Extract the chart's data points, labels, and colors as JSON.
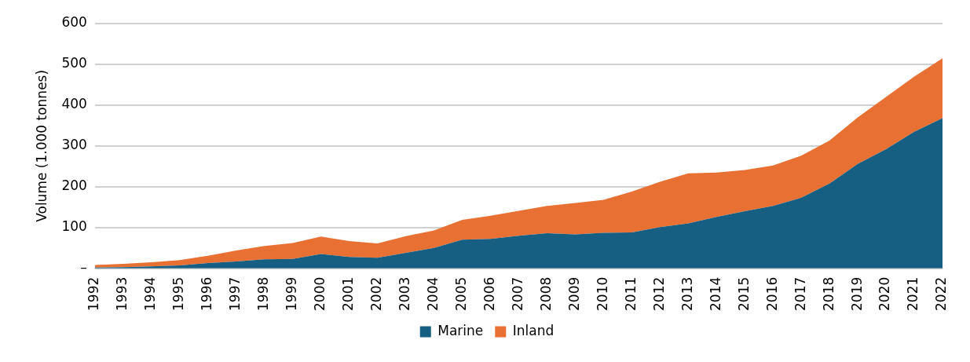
{
  "chart_data": {
    "type": "area",
    "stacked": true,
    "ylabel": "Volume (1.000 tonnes)",
    "categories": [
      "1992",
      "1993",
      "1994",
      "1995",
      "1996",
      "1997",
      "1998",
      "1999",
      "2000",
      "2001",
      "2002",
      "2003",
      "2004",
      "2005",
      "2006",
      "2007",
      "2008",
      "2009",
      "2010",
      "2011",
      "2012",
      "2013",
      "2014",
      "2015",
      "2016",
      "2017",
      "2018",
      "2019",
      "2020",
      "2021",
      "2022"
    ],
    "series": [
      {
        "name": "Marine",
        "color": "#175f82",
        "values": [
          2,
          3,
          5,
          7,
          13,
          17,
          22,
          23,
          35,
          28,
          26,
          38,
          50,
          70,
          72,
          80,
          86,
          83,
          87,
          88,
          101,
          110,
          126,
          140,
          153,
          173,
          208,
          256,
          292,
          335,
          368
        ]
      },
      {
        "name": "Inland",
        "color": "#e87033",
        "values": [
          6,
          8,
          10,
          13,
          18,
          27,
          33,
          39,
          43,
          39,
          35,
          41,
          43,
          49,
          57,
          61,
          67,
          77,
          81,
          100,
          111,
          123,
          109,
          101,
          99,
          103,
          105,
          114,
          128,
          135,
          147
        ]
      }
    ],
    "ylim": [
      0,
      600
    ],
    "yticks": [
      {
        "value": 0,
        "label": "–"
      },
      100,
      200,
      300,
      400,
      500,
      600
    ],
    "grid": "y",
    "legend": "bottom"
  }
}
